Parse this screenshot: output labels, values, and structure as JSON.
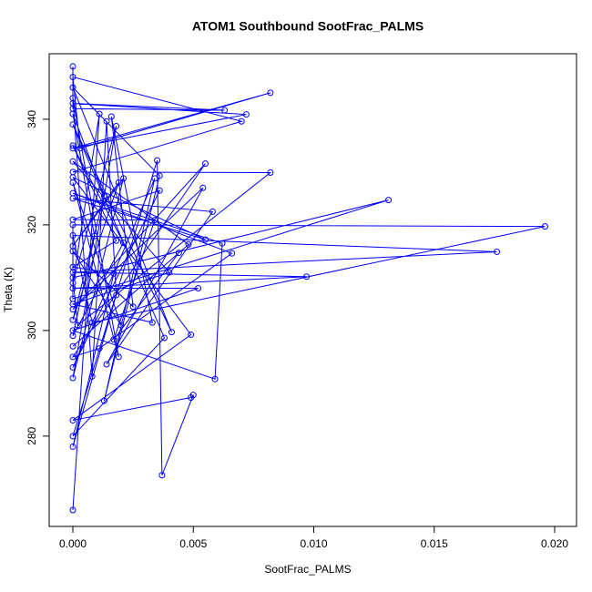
{
  "chart_data": {
    "type": "line",
    "title": "ATOM1 Southbound SootFrac_PALMS",
    "x_label": "SootFrac_PALMS",
    "y_label": "Theta (K)",
    "xlim": [
      -0.000983,
      0.020907
    ],
    "ylim": [
      262.9,
      352.4
    ],
    "xticks": [
      {
        "value": 0,
        "label": "0.000"
      },
      {
        "value": 0.005,
        "label": "0.005"
      },
      {
        "value": 0.01,
        "label": "0.010"
      },
      {
        "value": 0.015,
        "label": "0.015"
      },
      {
        "value": 0.02,
        "label": "0.020"
      }
    ],
    "yticks": [
      280,
      300,
      320,
      340
    ],
    "series": [
      {
        "color": "#0000ff",
        "x": [
          0,
          0,
          0.0063,
          0,
          0.0072,
          0,
          0.0082,
          0.0003,
          0,
          0.007,
          0,
          0.0082,
          0.0002,
          0,
          0.0131,
          0,
          0,
          0.0196,
          0.0008,
          0,
          0.0176,
          0,
          0.0097,
          0,
          0.0052,
          0,
          0.0059,
          0.0062,
          0,
          0.0066,
          0.0011,
          0,
          0.0055,
          0,
          0.0054,
          0.0014,
          0.0058,
          0,
          0.0055,
          0,
          0.0049,
          0,
          0.0049,
          0.005,
          0.0037,
          0.0035,
          0,
          0.0038,
          0,
          0.0041,
          0,
          0.0036,
          0.0013,
          0.0034,
          0,
          0.0036,
          0,
          0.0034,
          0.0017,
          0.0044,
          0,
          0.0048,
          0,
          0.004,
          0,
          0.0033,
          0.0016,
          0.0025,
          0,
          0.002,
          0,
          0.0019,
          0,
          0.0008,
          0.0014,
          0.0018,
          0,
          0.0017,
          0,
          0.0018,
          0,
          0.0021,
          0,
          0.0009,
          0,
          0.0013,
          0,
          0.0019,
          0,
          0.0021,
          0,
          0.0018,
          0,
          0.0011,
          0
        ],
        "values": [
          350,
          342,
          341.7,
          343,
          340.9,
          334.5,
          345,
          334.5,
          348,
          339.6,
          330,
          329.9,
          301,
          310,
          324.7,
          306,
          320,
          319.7,
          301.5,
          318,
          314.9,
          311,
          310.2,
          308,
          308,
          300,
          290.8,
          316.5,
          326,
          314.6,
          296.6,
          295,
          331.6,
          304,
          327,
          293.6,
          322.5,
          325,
          317.2,
          329,
          299.2,
          283,
          287.3,
          287.8,
          272.6,
          332.2,
          280,
          298.6,
          339,
          299.7,
          346,
          329.3,
          286.7,
          328.8,
          293,
          326.5,
          321,
          320.9,
          298.3,
          314.7,
          297,
          316.3,
          332,
          311,
          305,
          301.5,
          340.5,
          304.5,
          315,
          301,
          328,
          295,
          344,
          291.3,
          339.6,
          306.7,
          278,
          310.8,
          312,
          317,
          335,
          316.6,
          299,
          317.9,
          341,
          325.5,
          302,
          328,
          316,
          328.8,
          291,
          338.7,
          309,
          341,
          266
        ]
      }
    ]
  }
}
